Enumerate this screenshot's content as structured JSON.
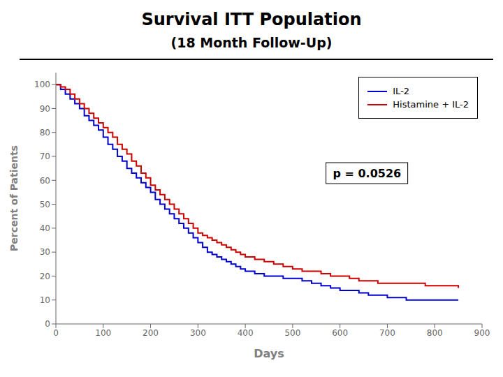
{
  "chart_data": {
    "type": "line",
    "title": "Survival ITT Population",
    "subtitle": "(18 Month Follow-Up)",
    "x_label": "Days",
    "y_label": "Percent of Patients",
    "line_style": "step",
    "grid": false,
    "legend": "upper right",
    "annotations": [
      "p = 0.0526"
    ],
    "xlim": [
      0,
      900
    ],
    "ylim": [
      0,
      105
    ],
    "xticks": [
      0,
      100,
      200,
      300,
      400,
      500,
      600,
      700,
      800,
      900
    ],
    "yticks": [
      0,
      10,
      20,
      30,
      40,
      50,
      60,
      70,
      80,
      90,
      100
    ],
    "x": [
      0,
      10,
      20,
      30,
      40,
      50,
      60,
      70,
      80,
      90,
      100,
      110,
      120,
      130,
      140,
      150,
      160,
      170,
      180,
      190,
      200,
      210,
      220,
      230,
      240,
      250,
      260,
      270,
      280,
      290,
      300,
      310,
      320,
      330,
      340,
      350,
      360,
      370,
      380,
      390,
      400,
      420,
      440,
      460,
      480,
      500,
      520,
      540,
      560,
      580,
      600,
      620,
      640,
      660,
      680,
      700,
      720,
      740,
      760,
      780,
      800,
      830,
      850
    ],
    "series": [
      {
        "name": "IL-2",
        "color": "#0000CC",
        "values": [
          100,
          98,
          96,
          94,
          92,
          90,
          87,
          85,
          83,
          81,
          78,
          75,
          73,
          70,
          68,
          65,
          63,
          61,
          59,
          57,
          55,
          52,
          50,
          48,
          46,
          44,
          42,
          40,
          38,
          36,
          34,
          32,
          30,
          29,
          28,
          27,
          26,
          25,
          24,
          23,
          22,
          21,
          20,
          20,
          19,
          19,
          18,
          17,
          16,
          15,
          14,
          14,
          13,
          12,
          12,
          11,
          11,
          10,
          10,
          10,
          10,
          10,
          10
        ]
      },
      {
        "name": "Histamine + IL-2",
        "color": "#CC0000",
        "values": [
          100,
          99,
          98,
          96,
          94,
          92,
          90,
          88,
          86,
          84,
          82,
          80,
          78,
          75,
          73,
          71,
          68,
          66,
          63,
          61,
          58,
          56,
          54,
          52,
          50,
          48,
          46,
          44,
          42,
          40,
          38,
          37,
          36,
          35,
          34,
          33,
          32,
          31,
          30,
          29,
          28,
          27,
          26,
          25,
          24,
          23,
          22,
          22,
          21,
          20,
          20,
          19,
          18,
          18,
          17,
          17,
          17,
          17,
          17,
          16,
          16,
          16,
          15
        ]
      }
    ]
  }
}
